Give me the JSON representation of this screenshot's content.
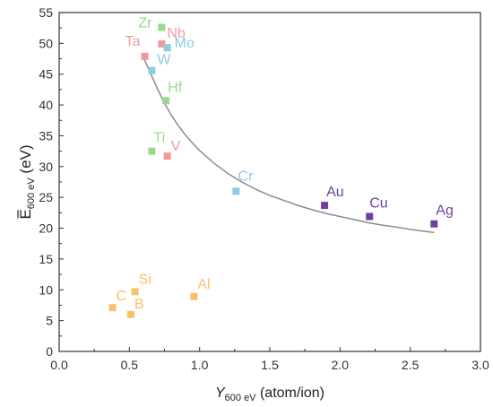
{
  "chart_data": {
    "type": "scatter",
    "title": "",
    "xlabel": {
      "main": "Y",
      "sub": "600 eV",
      "unit": " (atom/ion)"
    },
    "ylabel": {
      "main": "E",
      "sub": "600 eV",
      "unit": " (eV)"
    },
    "xlim": [
      0.0,
      3.0
    ],
    "ylim": [
      0,
      55
    ],
    "xticks": [
      "0.0",
      "0.5",
      "1.0",
      "1.5",
      "2.0",
      "2.5",
      "3.0"
    ],
    "yticks": [
      "0",
      "5",
      "10",
      "15",
      "20",
      "25",
      "30",
      "35",
      "40",
      "45",
      "50",
      "55"
    ],
    "grid": false,
    "legend": "none",
    "groups": {
      "green": "#99d98c",
      "red": "#f4999a",
      "blue": "#8fcbe6",
      "purple": "#6f3fa0",
      "orange": "#f9c06a"
    },
    "points": [
      {
        "label": "Zr",
        "x": 0.73,
        "y": 52.6,
        "group": "green",
        "dx": -26,
        "dy": 0
      },
      {
        "label": "Nb",
        "x": 0.73,
        "y": 49.9,
        "group": "red",
        "dx": 6,
        "dy": -7
      },
      {
        "label": "Ta",
        "x": 0.61,
        "y": 47.9,
        "group": "red",
        "dx": -22,
        "dy": -12
      },
      {
        "label": "Mo",
        "x": 0.77,
        "y": 49.3,
        "group": "blue",
        "dx": 8,
        "dy": 0
      },
      {
        "label": "W",
        "x": 0.66,
        "y": 45.6,
        "group": "blue",
        "dx": 6,
        "dy": -7
      },
      {
        "label": "Hf",
        "x": 0.76,
        "y": 40.7,
        "group": "green",
        "dx": 2,
        "dy": -10
      },
      {
        "label": "Ti",
        "x": 0.66,
        "y": 32.5,
        "group": "green",
        "dx": 2,
        "dy": -10
      },
      {
        "label": "V",
        "x": 0.77,
        "y": 31.7,
        "group": "red",
        "dx": 4,
        "dy": -6
      },
      {
        "label": "Cr",
        "x": 1.26,
        "y": 26.0,
        "group": "blue",
        "dx": 2,
        "dy": -12
      },
      {
        "label": "Au",
        "x": 1.89,
        "y": 23.7,
        "group": "purple",
        "dx": 2,
        "dy": -10
      },
      {
        "label": "Cu",
        "x": 2.21,
        "y": 21.9,
        "group": "purple",
        "dx": 0,
        "dy": -10
      },
      {
        "label": "Ag",
        "x": 2.67,
        "y": 20.7,
        "group": "purple",
        "dx": 2,
        "dy": -10
      },
      {
        "label": "Si",
        "x": 0.54,
        "y": 9.7,
        "group": "orange",
        "dx": 4,
        "dy": -9
      },
      {
        "label": "Al",
        "x": 0.96,
        "y": 8.9,
        "group": "orange",
        "dx": 4,
        "dy": -9
      },
      {
        "label": "C",
        "x": 0.38,
        "y": 7.1,
        "group": "orange",
        "dx": 4,
        "dy": -8
      },
      {
        "label": "B",
        "x": 0.51,
        "y": 6.0,
        "group": "orange",
        "dx": 4,
        "dy": -7
      }
    ],
    "fit_curve": {
      "x": [
        0.6,
        0.65,
        0.7,
        0.75,
        0.8,
        0.85,
        0.9,
        0.95,
        1.0,
        1.1,
        1.2,
        1.3,
        1.4,
        1.5,
        1.6,
        1.7,
        1.8,
        1.9,
        2.0,
        2.1,
        2.2,
        2.3,
        2.4,
        2.5,
        2.6,
        2.67
      ],
      "y": [
        47.7,
        45.2,
        42.6,
        40.3,
        38.3,
        36.6,
        35.1,
        33.8,
        32.6,
        30.6,
        28.9,
        27.5,
        26.3,
        25.3,
        24.5,
        23.7,
        23.0,
        22.4,
        21.9,
        21.4,
        20.9,
        20.5,
        20.2,
        19.8,
        19.5,
        19.3
      ],
      "color": "#8c8c8c"
    }
  }
}
